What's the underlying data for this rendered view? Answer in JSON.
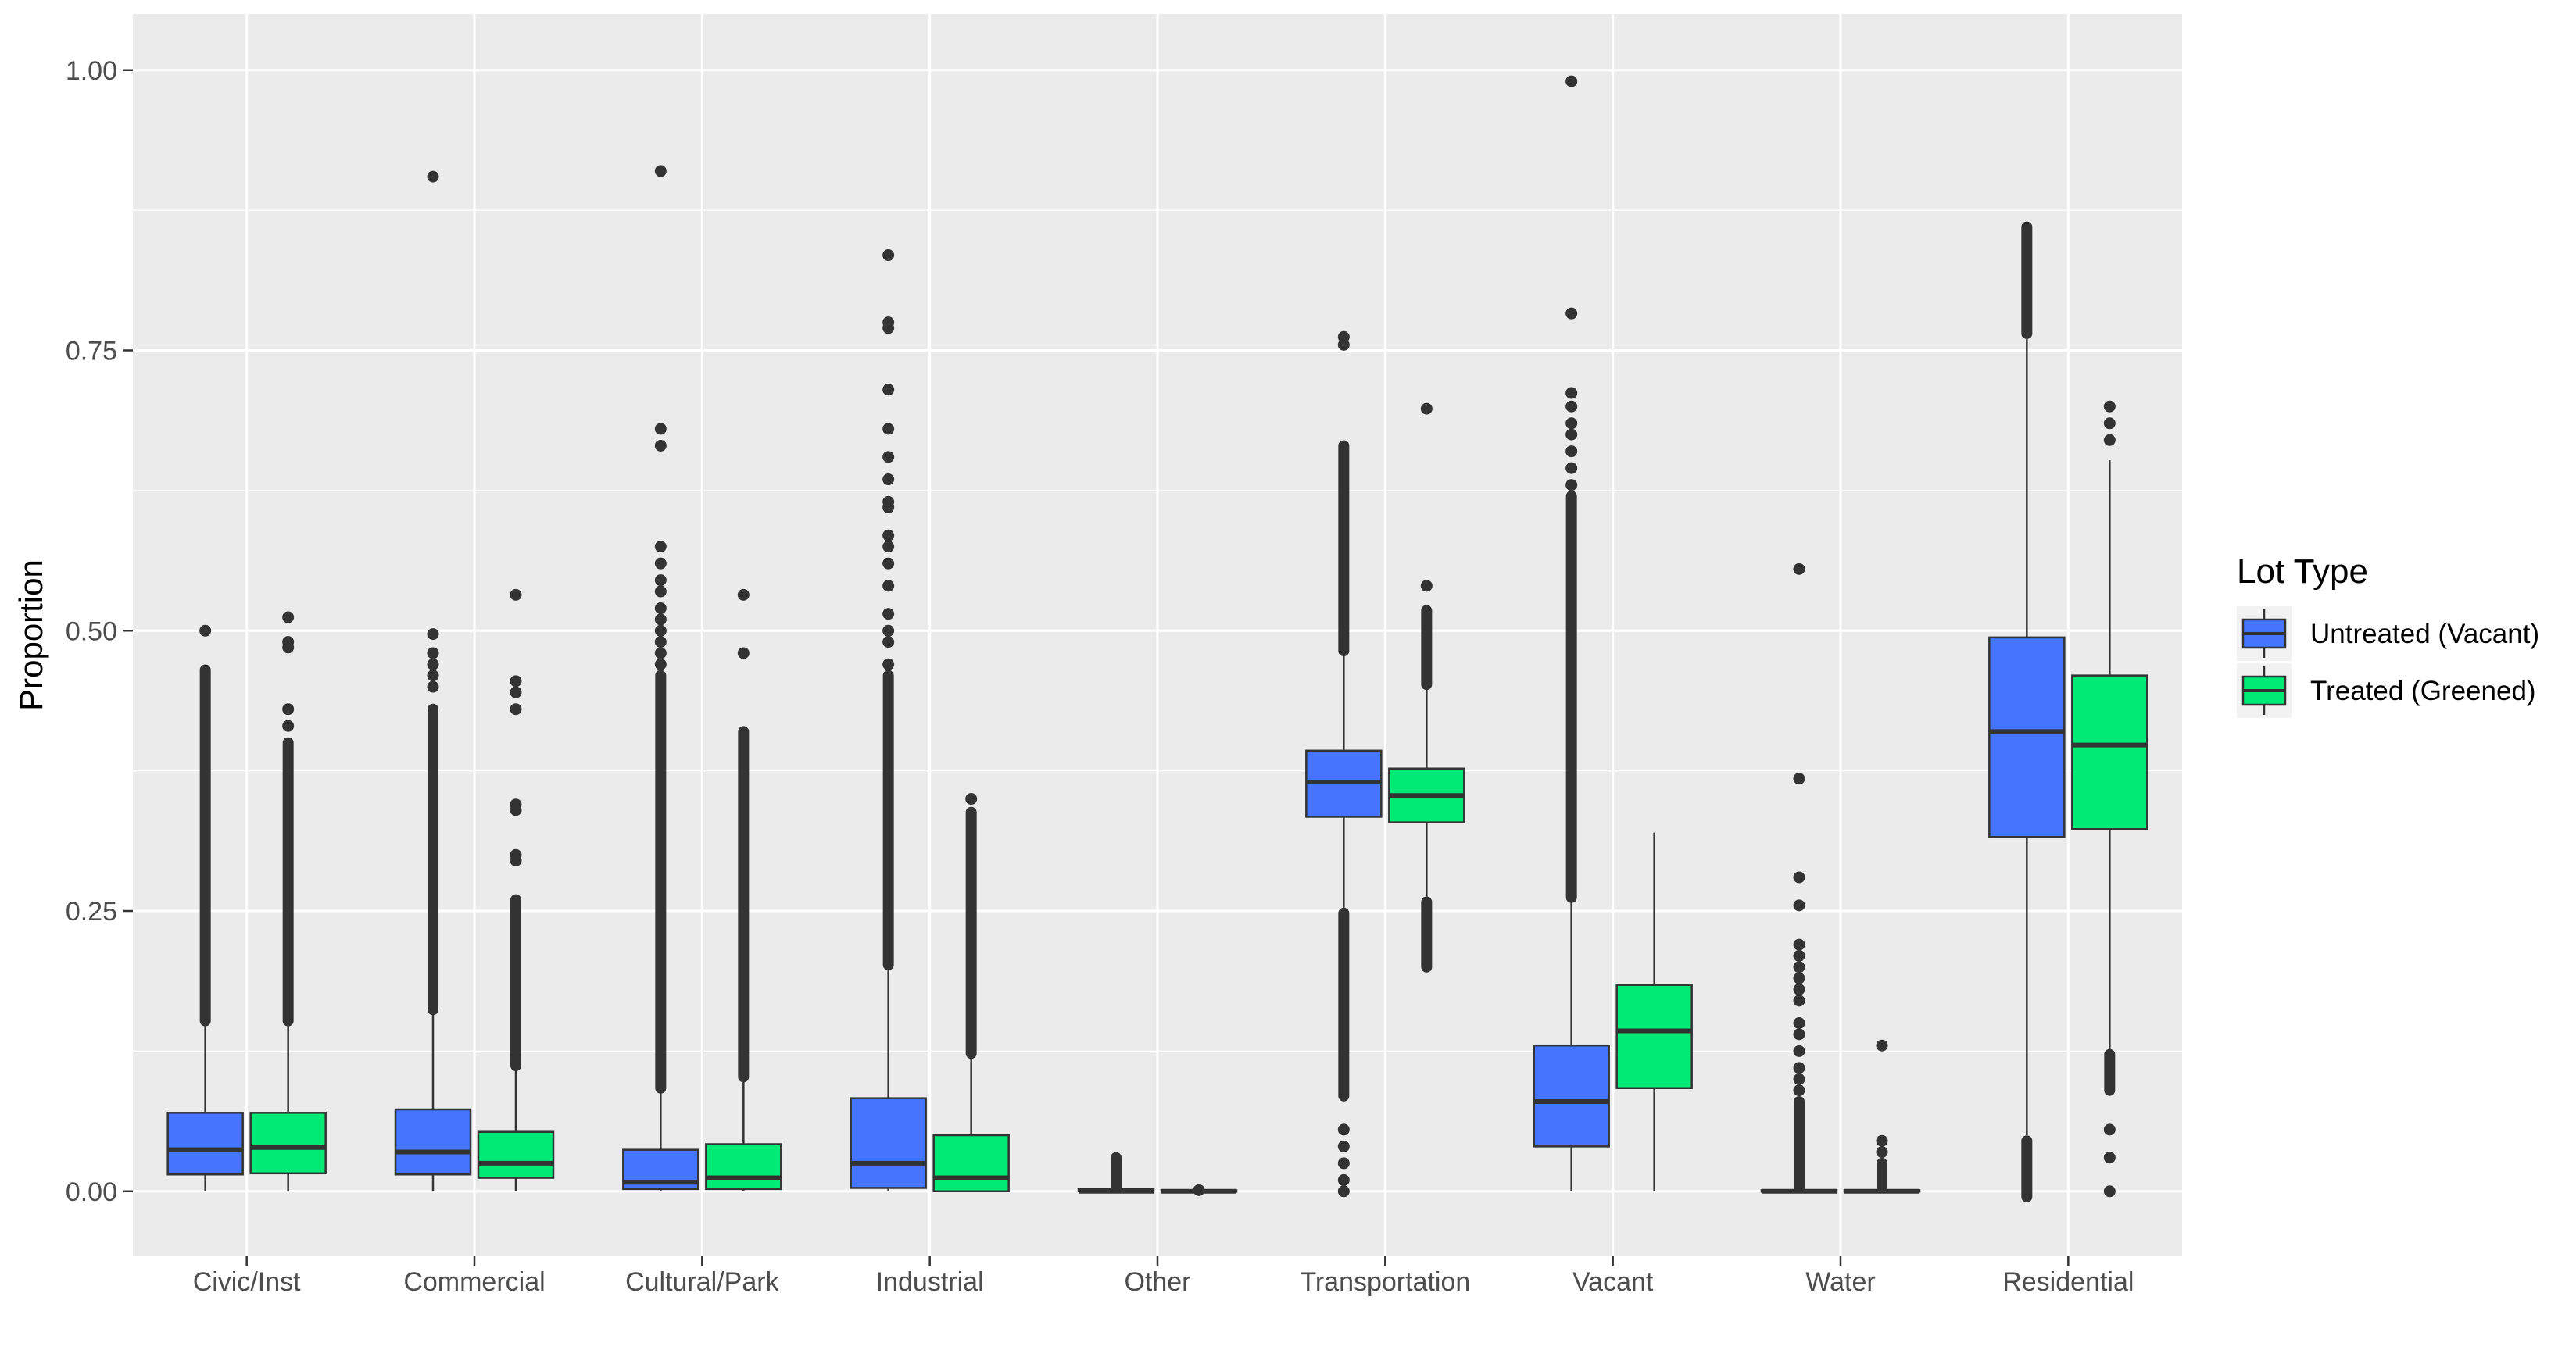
{
  "chart_data": {
    "type": "boxplot",
    "title": "",
    "xlabel": "",
    "ylabel": "Proportion",
    "ylim": [
      -0.058,
      1.05
    ],
    "yticks": [
      0.0,
      0.25,
      0.5,
      0.75,
      1.0
    ],
    "ytick_labels": [
      "0.00",
      "0.25",
      "0.50",
      "0.75",
      "1.00"
    ],
    "categories": [
      "Civic/Inst",
      "Commercial",
      "Cultural/Park",
      "Industrial",
      "Other",
      "Transportation",
      "Vacant",
      "Water",
      "Residential"
    ],
    "legend": {
      "title": "Lot Type",
      "position": "right",
      "entries": [
        {
          "name": "Untreated (Vacant)",
          "color": "#4574FF"
        },
        {
          "name": "Treated (Greened)",
          "color": "#00EB76"
        }
      ]
    },
    "series": [
      {
        "name": "Untreated (Vacant)",
        "color": "#4574FF",
        "boxes": [
          {
            "q1": 0.015,
            "median": 0.037,
            "q3": 0.07,
            "whisker_low": 0.0,
            "whisker_high": 0.15,
            "outliers": {
              "dense": [
                0.152,
                0.465
              ],
              "points": [
                0.5
              ]
            }
          },
          {
            "q1": 0.015,
            "median": 0.035,
            "q3": 0.073,
            "whisker_low": 0.0,
            "whisker_high": 0.16,
            "outliers": {
              "dense": [
                0.162,
                0.43
              ],
              "points": [
                0.45,
                0.46,
                0.47,
                0.48,
                0.497,
                0.905
              ]
            }
          },
          {
            "q1": 0.002,
            "median": 0.008,
            "q3": 0.037,
            "whisker_low": 0.0,
            "whisker_high": 0.09,
            "outliers": {
              "dense": [
                0.092,
                0.46
              ],
              "points": [
                0.47,
                0.48,
                0.49,
                0.5,
                0.51,
                0.52,
                0.535,
                0.545,
                0.56,
                0.575,
                0.665,
                0.68,
                0.91
              ]
            }
          },
          {
            "q1": 0.003,
            "median": 0.025,
            "q3": 0.083,
            "whisker_low": 0.0,
            "whisker_high": 0.2,
            "outliers": {
              "dense": [
                0.202,
                0.46
              ],
              "points": [
                0.47,
                0.49,
                0.5,
                0.515,
                0.54,
                0.56,
                0.575,
                0.585,
                0.61,
                0.615,
                0.635,
                0.655,
                0.68,
                0.715,
                0.77,
                0.775,
                0.835
              ]
            }
          },
          {
            "q1": 0.0,
            "median": 0.0,
            "q3": 0.002,
            "whisker_low": 0.0,
            "whisker_high": 0.003,
            "outliers": {
              "dense": [
                0.004,
                0.03
              ],
              "points": []
            }
          },
          {
            "q1": 0.334,
            "median": 0.365,
            "q3": 0.393,
            "whisker_low": 0.25,
            "whisker_high": 0.48,
            "outliers": {
              "dense": [
                0.085,
                0.248,
                0.482,
                0.665
              ],
              "points": [
                0.0,
                0.01,
                0.025,
                0.04,
                0.055,
                0.755,
                0.762
              ]
            }
          },
          {
            "q1": 0.04,
            "median": 0.08,
            "q3": 0.13,
            "whisker_low": 0.0,
            "whisker_high": 0.26,
            "outliers": {
              "dense": [
                0.262,
                0.62
              ],
              "points": [
                0.63,
                0.645,
                0.66,
                0.675,
                0.685,
                0.7,
                0.712,
                0.783,
                0.99
              ]
            }
          },
          {
            "q1": 0.0,
            "median": 0.0,
            "q3": 0.001,
            "whisker_low": 0.0,
            "whisker_high": 0.002,
            "outliers": {
              "dense": [
                0.003,
                0.08
              ],
              "points": [
                0.09,
                0.1,
                0.11,
                0.125,
                0.14,
                0.15,
                0.17,
                0.18,
                0.19,
                0.2,
                0.21,
                0.22,
                0.255,
                0.28,
                0.368,
                0.555
              ]
            }
          },
          {
            "q1": 0.316,
            "median": 0.41,
            "q3": 0.494,
            "whisker_low": 0.05,
            "whisker_high": 0.76,
            "outliers": {
              "dense": [
                -0.005,
                0.045,
                0.765,
                0.86
              ],
              "points": []
            }
          }
        ]
      },
      {
        "name": "Treated (Greened)",
        "color": "#00EB76",
        "boxes": [
          {
            "q1": 0.016,
            "median": 0.039,
            "q3": 0.07,
            "whisker_low": 0.0,
            "whisker_high": 0.15,
            "outliers": {
              "dense": [
                0.152,
                0.4
              ],
              "points": [
                0.415,
                0.43,
                0.485,
                0.49,
                0.512
              ]
            }
          },
          {
            "q1": 0.012,
            "median": 0.025,
            "q3": 0.053,
            "whisker_low": 0.0,
            "whisker_high": 0.11,
            "outliers": {
              "dense": [
                0.112,
                0.26
              ],
              "points": [
                0.295,
                0.3,
                0.34,
                0.345,
                0.43,
                0.445,
                0.455,
                0.532
              ]
            }
          },
          {
            "q1": 0.002,
            "median": 0.012,
            "q3": 0.042,
            "whisker_low": 0.0,
            "whisker_high": 0.1,
            "outliers": {
              "dense": [
                0.102,
                0.41
              ],
              "points": [
                0.48,
                0.532
              ]
            }
          },
          {
            "q1": 0.0,
            "median": 0.012,
            "q3": 0.05,
            "whisker_low": 0.0,
            "whisker_high": 0.12,
            "outliers": {
              "dense": [
                0.123,
                0.338
              ],
              "points": [
                0.35
              ]
            }
          },
          {
            "q1": 0.0,
            "median": 0.0,
            "q3": 0.001,
            "whisker_low": 0.0,
            "whisker_high": 0.001,
            "outliers": {
              "dense": [],
              "points": [
                0.001
              ]
            }
          },
          {
            "q1": 0.329,
            "median": 0.353,
            "q3": 0.377,
            "whisker_low": 0.26,
            "whisker_high": 0.45,
            "outliers": {
              "dense": [
                0.2,
                0.258,
                0.452,
                0.518
              ],
              "points": [
                0.54,
                0.698
              ]
            }
          },
          {
            "q1": 0.092,
            "median": 0.143,
            "q3": 0.184,
            "whisker_low": 0.0,
            "whisker_high": 0.32,
            "outliers": {
              "dense": [],
              "points": []
            }
          },
          {
            "q1": 0.0,
            "median": 0.0,
            "q3": 0.001,
            "whisker_low": 0.0,
            "whisker_high": 0.002,
            "outliers": {
              "dense": [
                0.003,
                0.025
              ],
              "points": [
                0.035,
                0.045,
                0.13
              ]
            }
          },
          {
            "q1": 0.323,
            "median": 0.398,
            "q3": 0.46,
            "whisker_low": 0.125,
            "whisker_high": 0.652,
            "outliers": {
              "dense": [
                0.09,
                0.122
              ],
              "points": [
                0.0,
                0.03,
                0.055,
                0.67,
                0.685,
                0.7
              ]
            }
          }
        ]
      }
    ]
  }
}
